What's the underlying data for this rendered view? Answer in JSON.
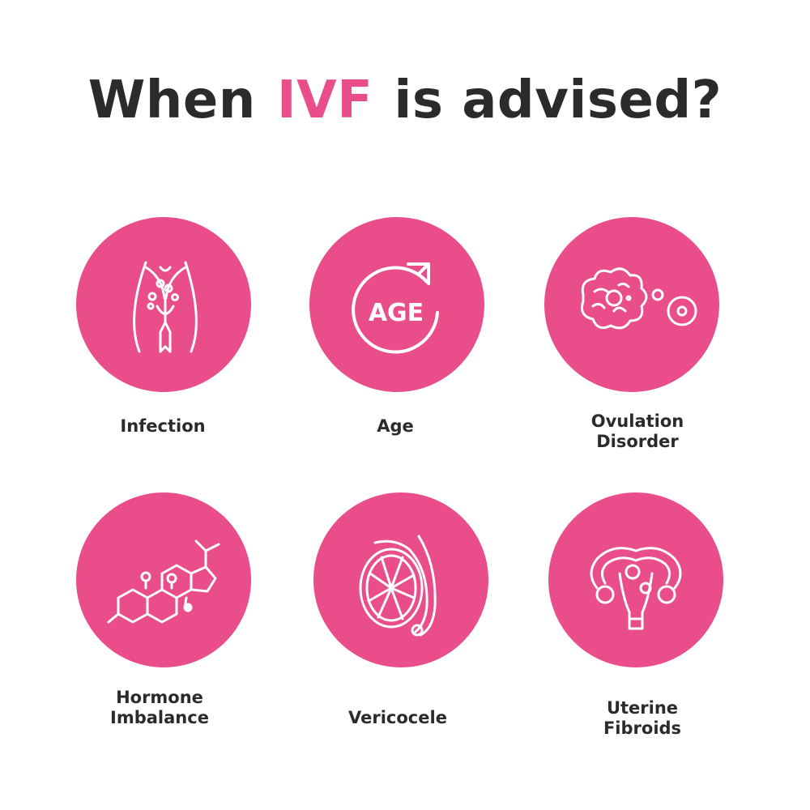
{
  "title": {
    "prefix": "When",
    "accent": "IVF",
    "suffix": "is advised?"
  },
  "colors": {
    "accent": "#e94d8a",
    "text": "#2b2b2b",
    "background": "#ffffff",
    "icon_stroke": "#ffffff"
  },
  "items": [
    {
      "icon": "female-pelvis-icon",
      "label_lines": [
        "Infection"
      ]
    },
    {
      "icon": "age-cycle-icon",
      "icon_text": "AGE",
      "label_lines": [
        "Age"
      ]
    },
    {
      "icon": "ovary-follicle-icon",
      "label_lines": [
        "Ovulation",
        "Disorder"
      ]
    },
    {
      "icon": "hormone-molecule-icon",
      "label_lines": [
        "Hormone",
        "Imbalance"
      ]
    },
    {
      "icon": "testicle-icon",
      "label_lines": [
        "Vericocele"
      ]
    },
    {
      "icon": "uterus-fibroids-icon",
      "label_lines": [
        "Uterine",
        "Fibroids"
      ]
    }
  ]
}
